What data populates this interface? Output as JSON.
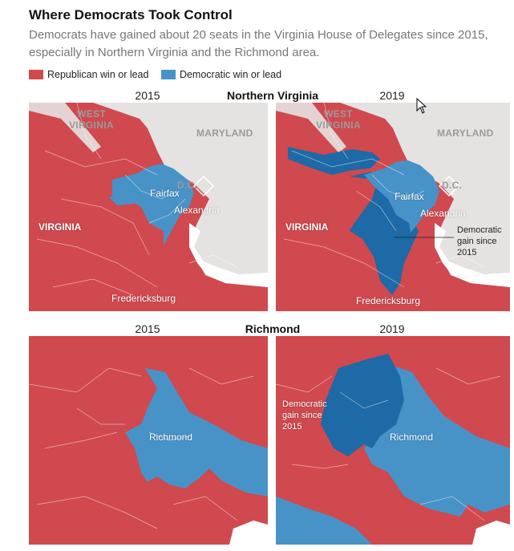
{
  "header": {
    "title": "Where Democrats Took Control",
    "subtitle": "Democrats have gained about 20 seats in the Virginia House of Delegates since 2015, especially in Northern Virginia and the Richmond area."
  },
  "legend": [
    {
      "label": "Republican win or lead",
      "color": "#d0494f"
    },
    {
      "label": "Democratic win or lead",
      "color": "#4793c8"
    }
  ],
  "colors": {
    "republican": "#d0494f",
    "democratic": "#4793c8",
    "democratic_gain": "#1d6aa6",
    "other_state": "#e4e3e1",
    "water": "#ffffff"
  },
  "sections": [
    {
      "name": "Northern Virginia",
      "maps": [
        {
          "year": "2015",
          "labels": {
            "west_virginia": "WEST VIRGINIA",
            "maryland": "MARYLAND",
            "dc": "D.C.",
            "virginia": "VIRGINIA",
            "fairfax": "Fairfax",
            "alexandria": "Alexandria",
            "fredericksburg": "Fredericksburg"
          }
        },
        {
          "year": "2019",
          "labels": {
            "west_virginia": "WEST VIRGINIA",
            "maryland": "MARYLAND",
            "dc": "D.C.",
            "virginia": "VIRGINIA",
            "fairfax": "Fairfax",
            "alexandria": "Alexandria",
            "fredericksburg": "Fredericksburg",
            "annotation": "Democratic gain since 2015"
          }
        }
      ]
    },
    {
      "name": "Richmond",
      "maps": [
        {
          "year": "2015",
          "labels": {
            "city": "Richmond"
          }
        },
        {
          "year": "2019",
          "labels": {
            "city": "Richmond",
            "annotation": "Democratic gain since 2015"
          }
        }
      ]
    }
  ]
}
